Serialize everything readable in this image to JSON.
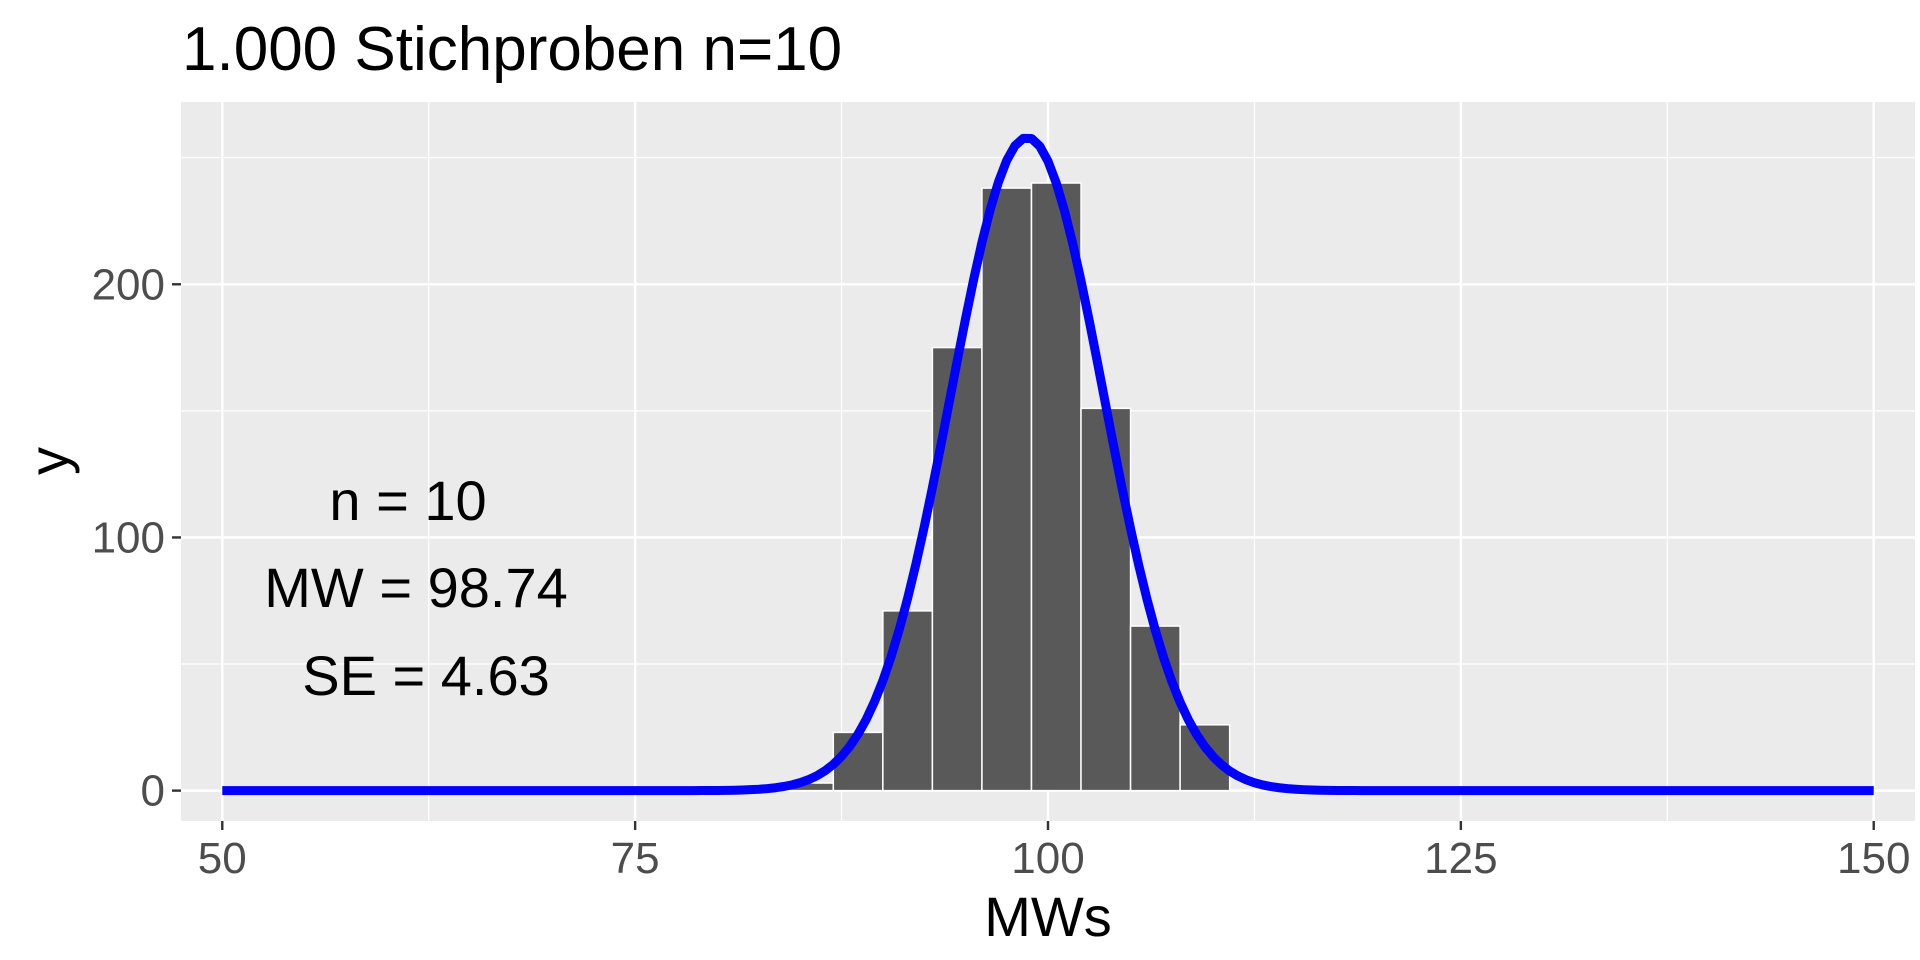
{
  "chart_data": {
    "type": "bar",
    "title": "1.000 Stichproben n=10",
    "xlabel": "MWs",
    "ylabel": "y",
    "xlim": [
      47.5,
      152.5
    ],
    "ylim": [
      -12,
      272
    ],
    "x_ticks": [
      50,
      75,
      100,
      125,
      150
    ],
    "x_tick_labels": [
      "50",
      "75",
      "100",
      "125",
      "150"
    ],
    "y_ticks": [
      0,
      100,
      200
    ],
    "y_tick_labels": [
      "0",
      "100",
      "200"
    ],
    "grid": true,
    "bin_width": 3,
    "bins": [
      {
        "x_start": 84,
        "x_end": 87,
        "count": 3
      },
      {
        "x_start": 87,
        "x_end": 90,
        "count": 23
      },
      {
        "x_start": 90,
        "x_end": 93,
        "count": 71
      },
      {
        "x_start": 93,
        "x_end": 96,
        "count": 175
      },
      {
        "x_start": 96,
        "x_end": 99,
        "count": 238
      },
      {
        "x_start": 99,
        "x_end": 102,
        "count": 240
      },
      {
        "x_start": 102,
        "x_end": 105,
        "count": 151
      },
      {
        "x_start": 105,
        "x_end": 108,
        "count": 65
      },
      {
        "x_start": 108,
        "x_end": 111,
        "count": 26
      }
    ],
    "curve": {
      "mean": 98.74,
      "se": 4.63,
      "peak": 258,
      "x_range": [
        50,
        150
      ]
    },
    "annotations": [
      "n = 10",
      "MW = 98.74",
      "SE = 4.63"
    ],
    "colors": {
      "panel": "#ebebeb",
      "grid": "#ffffff",
      "bar_fill": "#595959",
      "bar_outline": "#ffffff",
      "curve": "#0000ff",
      "tick_text": "#4d4d4d",
      "tick_mark": "#333333"
    }
  }
}
